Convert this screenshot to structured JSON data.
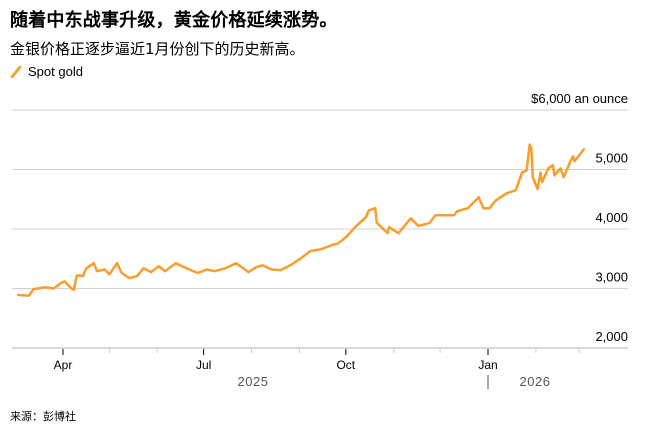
{
  "title": "随着中东战事升级，黄金价格延续涨势。",
  "subtitle": "金银价格正逐步逼近1月份创下的历史新高。",
  "legend": {
    "label": "Spot gold",
    "color": "#f99e2b"
  },
  "source": "来源：彭博社",
  "chart_data": {
    "type": "line",
    "title": "",
    "ylabel": "$6,000 an ounce",
    "ylim": [
      2000,
      6000
    ],
    "y_ticks": [
      {
        "value": 6000,
        "label": "$6,000 an ounce"
      },
      {
        "value": 5000,
        "label": "5,000"
      },
      {
        "value": 4000,
        "label": "4,000"
      },
      {
        "value": 3000,
        "label": "3,000"
      },
      {
        "value": 2000,
        "label": "2,000"
      }
    ],
    "x_ticks": [
      {
        "date": "2025-04-01",
        "label": "Apr"
      },
      {
        "date": "2025-05-01",
        "label": ""
      },
      {
        "date": "2025-06-01",
        "label": ""
      },
      {
        "date": "2025-07-01",
        "label": "Jul"
      },
      {
        "date": "2025-08-01",
        "label": ""
      },
      {
        "date": "2025-09-01",
        "label": ""
      },
      {
        "date": "2025-10-01",
        "label": "Oct"
      },
      {
        "date": "2025-11-01",
        "label": ""
      },
      {
        "date": "2025-12-01",
        "label": ""
      },
      {
        "date": "2026-01-01",
        "label": "Jan"
      },
      {
        "date": "2026-02-01",
        "label": ""
      },
      {
        "date": "2026-03-01",
        "label": ""
      }
    ],
    "years": [
      {
        "date": "2025-08-15",
        "label": "2025"
      },
      {
        "date": "2026-02-01",
        "label": "2026"
      }
    ],
    "grid": true,
    "series": [
      {
        "name": "Spot gold",
        "color": "#f99e2b",
        "points": [
          [
            "2025-03-03",
            2890
          ],
          [
            "2025-03-10",
            2880
          ],
          [
            "2025-03-13",
            2990
          ],
          [
            "2025-03-20",
            3020
          ],
          [
            "2025-03-26",
            3000
          ],
          [
            "2025-03-31",
            3100
          ],
          [
            "2025-04-02",
            3120
          ],
          [
            "2025-04-07",
            2990
          ],
          [
            "2025-04-08",
            2980
          ],
          [
            "2025-04-10",
            3220
          ],
          [
            "2025-04-14",
            3210
          ],
          [
            "2025-04-16",
            3340
          ],
          [
            "2025-04-21",
            3425
          ],
          [
            "2025-04-23",
            3290
          ],
          [
            "2025-04-28",
            3320
          ],
          [
            "2025-05-01",
            3240
          ],
          [
            "2025-05-06",
            3425
          ],
          [
            "2025-05-09",
            3260
          ],
          [
            "2025-05-14",
            3175
          ],
          [
            "2025-05-19",
            3210
          ],
          [
            "2025-05-23",
            3340
          ],
          [
            "2025-05-28",
            3275
          ],
          [
            "2025-06-02",
            3375
          ],
          [
            "2025-06-06",
            3290
          ],
          [
            "2025-06-13",
            3425
          ],
          [
            "2025-06-20",
            3340
          ],
          [
            "2025-06-27",
            3260
          ],
          [
            "2025-07-03",
            3320
          ],
          [
            "2025-07-08",
            3290
          ],
          [
            "2025-07-15",
            3340
          ],
          [
            "2025-07-22",
            3425
          ],
          [
            "2025-07-30",
            3275
          ],
          [
            "2025-08-04",
            3360
          ],
          [
            "2025-08-08",
            3390
          ],
          [
            "2025-08-14",
            3320
          ],
          [
            "2025-08-20",
            3310
          ],
          [
            "2025-08-26",
            3390
          ],
          [
            "2025-09-02",
            3510
          ],
          [
            "2025-09-08",
            3630
          ],
          [
            "2025-09-15",
            3660
          ],
          [
            "2025-09-22",
            3730
          ],
          [
            "2025-09-26",
            3760
          ],
          [
            "2025-10-01",
            3860
          ],
          [
            "2025-10-07",
            4030
          ],
          [
            "2025-10-14",
            4200
          ],
          [
            "2025-10-16",
            4315
          ],
          [
            "2025-10-20",
            4350
          ],
          [
            "2025-10-21",
            4110
          ],
          [
            "2025-10-28",
            3930
          ],
          [
            "2025-10-29",
            4030
          ],
          [
            "2025-11-04",
            3930
          ],
          [
            "2025-11-12",
            4180
          ],
          [
            "2025-11-17",
            4050
          ],
          [
            "2025-11-24",
            4100
          ],
          [
            "2025-11-28",
            4230
          ],
          [
            "2025-12-10",
            4230
          ],
          [
            "2025-12-12",
            4300
          ],
          [
            "2025-12-19",
            4350
          ],
          [
            "2025-12-26",
            4535
          ],
          [
            "2025-12-29",
            4350
          ],
          [
            "2026-01-02",
            4350
          ],
          [
            "2026-01-06",
            4480
          ],
          [
            "2026-01-13",
            4600
          ],
          [
            "2026-01-19",
            4650
          ],
          [
            "2026-01-23",
            4950
          ],
          [
            "2026-01-26",
            4985
          ],
          [
            "2026-01-28",
            5420
          ],
          [
            "2026-01-29",
            5355
          ],
          [
            "2026-01-30",
            4870
          ],
          [
            "2026-02-02",
            4670
          ],
          [
            "2026-02-04",
            4950
          ],
          [
            "2026-02-05",
            4785
          ],
          [
            "2026-02-09",
            5020
          ],
          [
            "2026-02-12",
            5070
          ],
          [
            "2026-02-13",
            4900
          ],
          [
            "2026-02-17",
            5020
          ],
          [
            "2026-02-19",
            4870
          ],
          [
            "2026-02-23",
            5120
          ],
          [
            "2026-02-25",
            5220
          ],
          [
            "2026-02-26",
            5140
          ],
          [
            "2026-03-02",
            5270
          ],
          [
            "2026-03-04",
            5340
          ]
        ]
      }
    ]
  }
}
